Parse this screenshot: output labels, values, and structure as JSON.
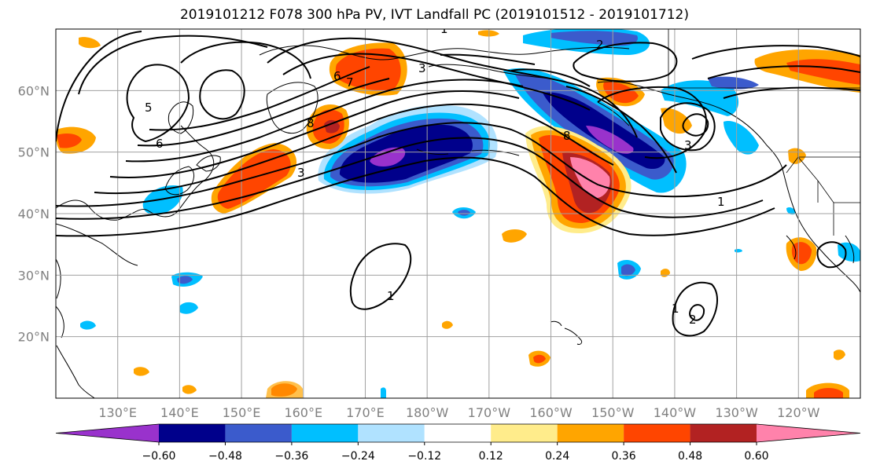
{
  "title": "2019101212 F078 300 hPa PV, IVT Landfall PC (2019101512 - 2019101712)",
  "map": {
    "projection": "cylindrical",
    "lon_range": [
      120,
      250
    ],
    "lat_range": [
      10,
      70
    ],
    "grid": true,
    "lat_ticks": [
      {
        "lat": 60,
        "label": "60°N"
      },
      {
        "lat": 50,
        "label": "50°N"
      },
      {
        "lat": 40,
        "label": "40°N"
      },
      {
        "lat": 30,
        "label": "30°N"
      },
      {
        "lat": 20,
        "label": "20°N"
      }
    ],
    "lon_ticks": [
      {
        "lon": 130,
        "label": "130°E"
      },
      {
        "lon": 140,
        "label": "140°E"
      },
      {
        "lon": 150,
        "label": "150°E"
      },
      {
        "lon": 160,
        "label": "160°E"
      },
      {
        "lon": 170,
        "label": "170°E"
      },
      {
        "lon": 180,
        "label": "180°W"
      },
      {
        "lon": 190,
        "label": "170°W"
      },
      {
        "lon": 200,
        "label": "160°W"
      },
      {
        "lon": 210,
        "label": "150°W"
      },
      {
        "lon": 220,
        "label": "140°W"
      },
      {
        "lon": 230,
        "label": "130°W"
      },
      {
        "lon": 240,
        "label": "120°W"
      }
    ]
  },
  "colorbar": {
    "colors": [
      "#9932cc",
      "#00008b",
      "#3b5bcc",
      "#00bfff",
      "#b0e2ff",
      "#ffffff",
      "#ffec8b",
      "#ffa500",
      "#ff4500",
      "#b22222",
      "#ff82ab"
    ],
    "tick_labels": [
      "-0.60",
      "-0.48",
      "-0.36",
      "-0.24",
      "-0.12",
      "0.12",
      "0.24",
      "0.36",
      "0.48",
      "0.60"
    ],
    "extend": "both"
  },
  "contour_labels": [
    "1",
    "1",
    "1",
    "2",
    "2",
    "3",
    "3",
    "5",
    "6",
    "6",
    "7",
    "8",
    "8",
    "1",
    "3"
  ],
  "colors": {
    "coastline": "#000000",
    "grid": "#a0a0a0",
    "contour": "#000000"
  }
}
